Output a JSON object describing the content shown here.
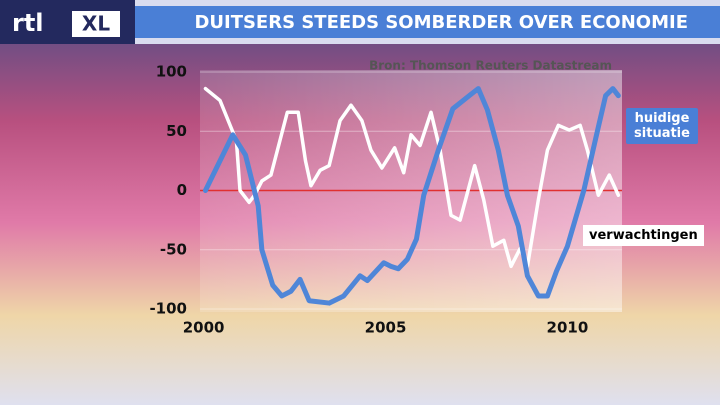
{
  "logo": [
    "rtl",
    "XL"
  ],
  "chart_data": {
    "type": "line",
    "title": "DUITSERS STEEDS SOMBERDER OVER ECONOMIE",
    "source": "Bron: Thomson Reuters Datastream",
    "xlim": [
      1999.9,
      2011.5
    ],
    "xticks": [
      2000,
      2005,
      2010
    ],
    "ylim": [
      -100,
      100
    ],
    "yticks": [
      -100,
      -50,
      0,
      50,
      100
    ],
    "grid": true,
    "zero_line_color": "#e03030",
    "series": [
      {
        "name": "huidige situatie",
        "color": "#4f86d8",
        "x": [
          2000.05,
          2000.8,
          2001.15,
          2001.5,
          2001.6,
          2001.9,
          2002.15,
          2002.4,
          2002.65,
          2002.9,
          2003.45,
          2003.85,
          2004.3,
          2004.5,
          2004.95,
          2005.15,
          2005.35,
          2005.6,
          2005.85,
          2006.05,
          2006.45,
          2006.85,
          2007.3,
          2007.55,
          2007.8,
          2008.1,
          2008.35,
          2008.65,
          2008.9,
          2009.2,
          2009.45,
          2009.7,
          2010.0,
          2010.45,
          2010.8,
          2011.05,
          2011.25,
          2011.4
        ],
        "values": [
          0,
          47,
          30,
          -13,
          -50,
          -80,
          -89,
          -85,
          -75,
          -93,
          -95,
          -89,
          -72,
          -76,
          -61,
          -64,
          -66,
          -58,
          -41,
          -4,
          34,
          69,
          80,
          86,
          68,
          34,
          -4,
          -30,
          -72,
          -89,
          -89,
          -68,
          -47,
          0,
          47,
          80,
          86,
          80
        ]
      },
      {
        "name": "verwachtingen",
        "color": "#ffffff",
        "x": [
          2000.05,
          2000.45,
          2000.9,
          2001.0,
          2001.25,
          2001.4,
          2001.6,
          2001.85,
          2002.3,
          2002.6,
          2002.8,
          2002.95,
          2003.2,
          2003.45,
          2003.75,
          2004.05,
          2004.35,
          2004.6,
          2004.9,
          2005.25,
          2005.5,
          2005.7,
          2005.95,
          2006.25,
          2006.5,
          2006.8,
          2007.05,
          2007.45,
          2007.7,
          2007.95,
          2008.25,
          2008.45,
          2008.7,
          2008.9,
          2009.2,
          2009.45,
          2009.75,
          2010.05,
          2010.35,
          2010.55,
          2010.85,
          2011.15,
          2011.4
        ],
        "values": [
          86,
          76,
          42,
          0,
          -10,
          -4,
          8,
          13,
          66,
          66,
          25,
          4,
          17,
          21,
          59,
          72,
          59,
          34,
          19,
          36,
          15,
          47,
          38,
          66,
          34,
          -21,
          -25,
          21,
          -8,
          -47,
          -42,
          -64,
          -49,
          -64,
          -8,
          34,
          55,
          51,
          55,
          34,
          -4,
          13,
          -4
        ]
      }
    ]
  }
}
